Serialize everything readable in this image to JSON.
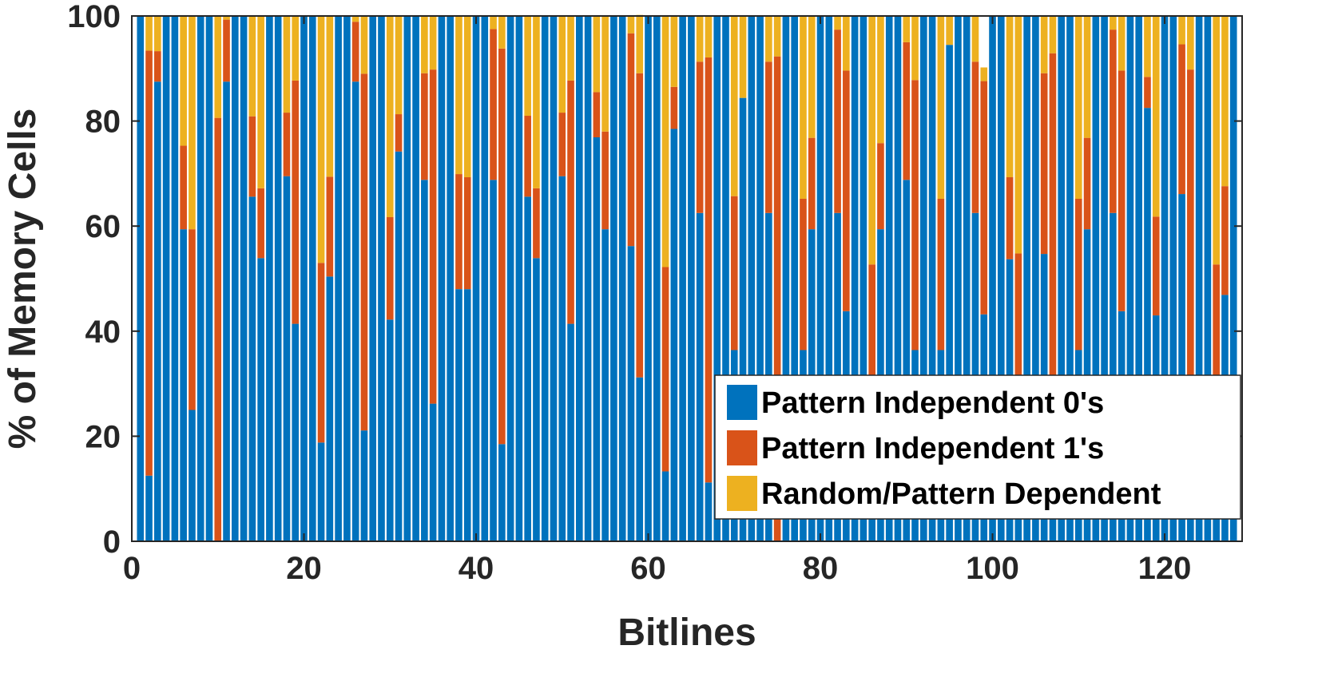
{
  "chart_data": {
    "type": "bar",
    "stacked": true,
    "title": "",
    "xlabel": "Bitlines",
    "ylabel": "% of Memory Cells",
    "xlim": [
      0,
      129
    ],
    "ylim": [
      0,
      100
    ],
    "xticks": [
      0,
      20,
      40,
      60,
      80,
      100,
      120
    ],
    "yticks": [
      0,
      20,
      40,
      60,
      80,
      100
    ],
    "grid": false,
    "legend_position": "bottom-right",
    "x": [
      1,
      2,
      3,
      4,
      5,
      6,
      7,
      8,
      9,
      10,
      11,
      12,
      13,
      14,
      15,
      16,
      17,
      18,
      19,
      20,
      21,
      22,
      23,
      24,
      25,
      26,
      27,
      28,
      29,
      30,
      31,
      32,
      33,
      34,
      35,
      36,
      37,
      38,
      39,
      40,
      41,
      42,
      43,
      44,
      45,
      46,
      47,
      48,
      49,
      50,
      51,
      52,
      53,
      54,
      55,
      56,
      57,
      58,
      59,
      60,
      61,
      62,
      63,
      64,
      65,
      66,
      67,
      68,
      69,
      70,
      71,
      72,
      73,
      74,
      75,
      76,
      77,
      78,
      79,
      80,
      81,
      82,
      83,
      84,
      85,
      86,
      87,
      88,
      89,
      90,
      91,
      92,
      93,
      94,
      95,
      96,
      97,
      98,
      99,
      100,
      101,
      102,
      103,
      104,
      105,
      106,
      107,
      108,
      109,
      110,
      111,
      112,
      113,
      114,
      115,
      116,
      117,
      118,
      119,
      120,
      121,
      122,
      123,
      124,
      125,
      126,
      127,
      128
    ],
    "series": [
      {
        "name": "Pattern Independent 0's",
        "color": "#0072BD",
        "values": [
          100,
          12.5,
          87.5,
          100,
          100,
          59.4,
          25,
          100,
          100,
          0,
          87.5,
          100,
          100,
          65.6,
          53.9,
          100,
          100,
          69.5,
          41.4,
          100,
          100,
          18.8,
          50.4,
          100,
          100,
          87.5,
          21.1,
          100,
          100,
          42.2,
          74.2,
          100,
          100,
          68.8,
          26.2,
          100,
          100,
          48,
          48,
          100,
          100,
          68.8,
          18.5,
          100,
          100,
          65.6,
          53.9,
          100,
          100,
          69.5,
          41.4,
          100,
          100,
          76.9,
          59.4,
          100,
          100,
          56.2,
          31.2,
          100,
          100,
          13.3,
          78.5,
          100,
          100,
          62.5,
          11.2,
          100,
          100,
          36.4,
          84.4,
          100,
          100,
          62.5,
          0,
          100,
          100,
          36.4,
          59.4,
          100,
          100,
          62.5,
          43.8,
          100,
          100,
          31.5,
          59.4,
          100,
          100,
          68.8,
          36.4,
          100,
          100,
          36.4,
          94.5,
          100,
          100,
          62.5,
          43.2,
          100,
          100,
          53.7,
          31.2,
          100,
          100,
          54.7,
          31.2,
          100,
          100,
          36.4,
          59.4,
          100,
          100,
          62.5,
          43.8,
          100,
          100,
          82.5,
          43,
          100,
          100,
          66.1,
          31.2,
          100,
          100,
          31.5,
          46.9,
          100
        ]
      },
      {
        "name": "Pattern Independent 1's",
        "color": "#D95319",
        "values": [
          0,
          80.9,
          5.8,
          0,
          0,
          15.9,
          34.4,
          0,
          0,
          80.6,
          11.8,
          0,
          0,
          15.3,
          13.3,
          0,
          0,
          12.1,
          46.3,
          0,
          0,
          34.2,
          19,
          0,
          0,
          11.4,
          67.9,
          0,
          0,
          19.5,
          7.1,
          0,
          0,
          20.3,
          63.6,
          0,
          0,
          21.9,
          21.3,
          0,
          0,
          28.7,
          75.3,
          0,
          0,
          15.4,
          13.3,
          0,
          0,
          12.1,
          46.3,
          0,
          0,
          8.6,
          18.6,
          0,
          0,
          40.5,
          57.9,
          0,
          0,
          38.9,
          8,
          0,
          0,
          28.8,
          80.9,
          0,
          0,
          29.3,
          0,
          0,
          0,
          28.8,
          92.3,
          0,
          0,
          28.8,
          17.4,
          0,
          0,
          34.9,
          45.8,
          0,
          0,
          21.2,
          16.4,
          0,
          0,
          26.2,
          51.4,
          0,
          0,
          28.8,
          0,
          0,
          0,
          28.8,
          44.4,
          0,
          0,
          15.6,
          23.6,
          0,
          0,
          34.4,
          61.7,
          0,
          0,
          28.8,
          17.4,
          0,
          0,
          34.9,
          45.8,
          0,
          0,
          5.9,
          18.8,
          0,
          0,
          28.5,
          58.6,
          0,
          0,
          21.2,
          20.7,
          0
        ]
      },
      {
        "name": "Random/Pattern Dependent",
        "color": "#EDB120",
        "values": [
          0,
          6.6,
          6.7,
          0,
          0,
          24.7,
          40.6,
          0,
          0,
          19.4,
          0.7,
          0,
          0,
          19.1,
          32.8,
          0,
          0,
          18.4,
          12.3,
          0,
          0,
          47,
          30.6,
          0,
          0,
          1.1,
          11,
          0,
          0,
          38.3,
          18.7,
          0,
          0,
          10.9,
          10.2,
          0,
          0,
          30.1,
          30.7,
          0,
          0,
          2.5,
          6.2,
          0,
          0,
          19,
          32.8,
          0,
          0,
          18.4,
          12.3,
          0,
          0,
          14.5,
          22,
          0,
          0,
          3.3,
          11.1,
          0,
          0,
          47.8,
          13.5,
          0,
          0,
          8.7,
          7.9,
          0,
          0,
          34.3,
          15.6,
          0,
          0,
          8.7,
          7.7,
          0,
          0,
          34.8,
          23.2,
          0,
          0,
          2.6,
          10.4,
          0,
          0,
          47.3,
          24.2,
          0,
          0,
          5,
          12.2,
          0,
          0,
          34.8,
          5.5,
          0,
          0,
          8.7,
          2.6,
          0,
          0,
          30.7,
          45.2,
          0,
          0,
          11,
          7.1,
          0,
          0,
          34.7,
          23.2,
          0,
          0,
          2.6,
          10.4,
          0,
          0,
          11.6,
          38.2,
          0,
          0,
          5.4,
          10.2,
          0,
          0,
          47.3,
          32.4,
          0
        ]
      }
    ]
  }
}
